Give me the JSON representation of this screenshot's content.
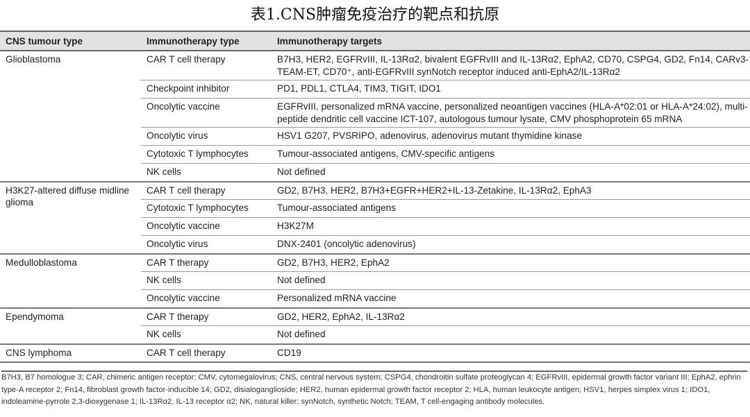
{
  "title": "表1.CNS肿瘤免疫治疗的靶点和抗原",
  "headers": [
    "CNS tumour type",
    "Immunotherapy type",
    "Immunotherapy targets"
  ],
  "groups": [
    {
      "tumour": "Glioblastoma",
      "rows": [
        {
          "type": "CAR T cell therapy",
          "targets": "B7H3, HER2, EGFRvIII, IL-13Rα2, bivalent EGFRvIII and IL-13Rα2, EphA2, CD70, CSPG4, GD2, Fn14, CARv3-TEAM-ET, CD70⁺, anti-EGFRvIII synNotch receptor induced anti-EphA2/IL-13Rα2"
        },
        {
          "type": "Checkpoint inhibitor",
          "targets": "PD1, PDL1, CTLA4, TIM3, TIGIT, IDO1"
        },
        {
          "type": "Oncolytic vaccine",
          "targets": "EGFRvIII, personalized mRNA vaccine, personalized neoantigen vaccines (HLA-A*02:01 or HLA-A*24:02), multi-peptide dendritic cell vaccine ICT-107, autologous tumour lysate, CMV phosphoprotein 65 mRNA"
        },
        {
          "type": "Oncolytic virus",
          "targets": "HSV1 G207, PVSRIPO, adenovirus, adenovirus mutant thymidine kinase"
        },
        {
          "type": "Cytotoxic T lymphocytes",
          "targets": "Tumour-associated antigens, CMV-specific antigens"
        },
        {
          "type": "NK cells",
          "targets": "Not defined"
        }
      ]
    },
    {
      "tumour": "H3K27-altered diffuse midline glioma",
      "rows": [
        {
          "type": "CAR T cell therapy",
          "targets": "GD2, B7H3, HER2, B7H3+EGFR+HER2+IL-13-Zetakine, IL-13Rα2, EphA3"
        },
        {
          "type": "Cytotoxic T lymphocytes",
          "targets": "Tumour-associated antigens"
        },
        {
          "type": "Oncolytic vaccine",
          "targets": "H3K27M"
        },
        {
          "type": "Oncolytic virus",
          "targets": "DNX-2401 (oncolytic adenovirus)"
        }
      ]
    },
    {
      "tumour": "Medulloblastoma",
      "rows": [
        {
          "type": "CAR T therapy",
          "targets": "GD2, B7H3, HER2, EphA2"
        },
        {
          "type": "NK cells",
          "targets": "Not defined"
        },
        {
          "type": "Oncolytic vaccine",
          "targets": "Personalized mRNA vaccine"
        }
      ]
    },
    {
      "tumour": "Ependymoma",
      "rows": [
        {
          "type": "CAR T therapy",
          "targets": "GD2, HER2, EphA2, IL-13Rα2"
        },
        {
          "type": "NK cells",
          "targets": "Not defined"
        }
      ]
    },
    {
      "tumour": "CNS lymphoma",
      "rows": [
        {
          "type": "CAR T cell therapy",
          "targets": "CD19"
        }
      ]
    }
  ],
  "footnote": "B7H3, B7 homologue 3; CAR, chimeric antigen receptor; CMV, cytomegalovirus; CNS, central nervous system; CSPG4, chondroitin sulfate proteoglycan 4; EGFRvIII, epidermal growth factor variant III; EphA2, ephrin type-A receptor 2; Fn14, fibroblast growth factor-inducible 14; GD2, disialoganglioside; HER2, human epidermal growth factor receptor 2; HLA, human leukocyte antigen; HSV1, herpes simplex virus 1; IDO1, indoleamine-pyrrole 2,3-dioxygenase 1; IL-13Rα2, IL-13 receptor α2; NK, natural killer; synNotch, synthetic Notch; TEAM, T cell-engaging antibody molecules."
}
